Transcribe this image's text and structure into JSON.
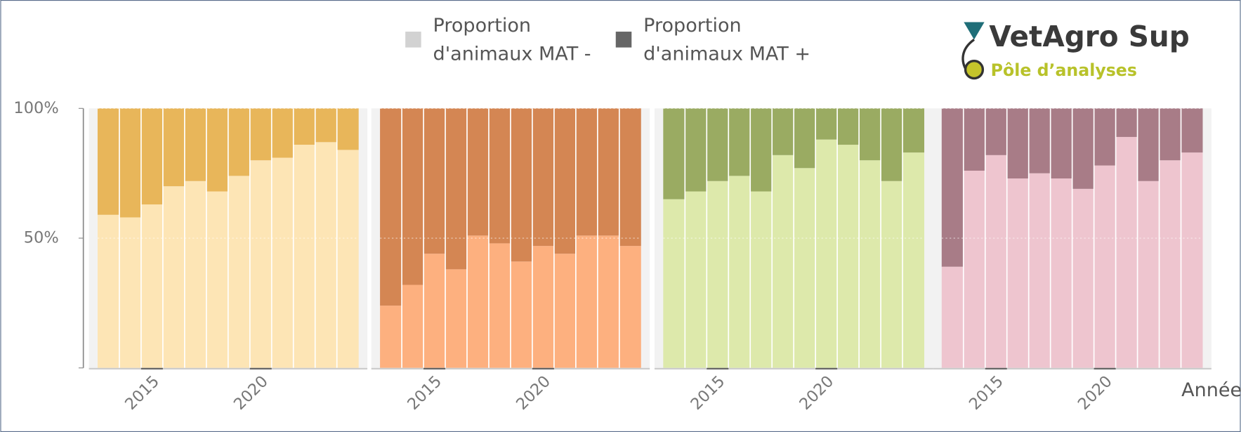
{
  "logo": {
    "name": "VetAgro Sup",
    "subtitle": "Pôle d’analyses"
  },
  "legend_colors": [
    "#d2d2d2",
    "#666666"
  ],
  "chart_data": [
    {
      "type": "bar",
      "stacked": true,
      "x": [
        2013,
        2014,
        2015,
        2016,
        2017,
        2018,
        2019,
        2020,
        2021,
        2022,
        2023,
        2024
      ],
      "xticks": [
        2015,
        2020
      ],
      "ylim": [
        0,
        100
      ],
      "yticks": [
        {
          "value": 50,
          "label": "50%"
        },
        {
          "value": 100,
          "label": "100%"
        }
      ],
      "grid": true,
      "series": [
        {
          "name": "Proportion d'animaux MAT -",
          "color": "#fde5b5",
          "values": [
            59,
            58,
            63,
            70,
            72,
            68,
            74,
            80,
            81,
            86,
            87,
            84
          ]
        },
        {
          "name": "Proportion d'animaux MAT +",
          "color": "#e8b65a",
          "values": [
            41,
            42,
            37,
            30,
            28,
            32,
            26,
            20,
            19,
            14,
            13,
            16
          ]
        }
      ]
    },
    {
      "type": "bar",
      "stacked": true,
      "x": [
        2013,
        2014,
        2015,
        2016,
        2017,
        2018,
        2019,
        2020,
        2021,
        2022,
        2023,
        2024
      ],
      "xticks": [
        2015,
        2020
      ],
      "ylim": [
        0,
        100
      ],
      "yticks": [
        {
          "value": 50,
          "label": "50%"
        },
        {
          "value": 100,
          "label": "100%"
        }
      ],
      "grid": true,
      "series": [
        {
          "name": "Proportion d'animaux MAT -",
          "color": "#fdb07f",
          "values": [
            24,
            32,
            44,
            38,
            51,
            48,
            41,
            47,
            44,
            51,
            51,
            47
          ]
        },
        {
          "name": "Proportion d'animaux MAT +",
          "color": "#d48653",
          "values": [
            76,
            68,
            56,
            62,
            49,
            52,
            59,
            53,
            56,
            49,
            49,
            53
          ]
        }
      ]
    },
    {
      "type": "bar",
      "stacked": true,
      "x": [
        2013,
        2014,
        2015,
        2016,
        2017,
        2018,
        2019,
        2020,
        2021,
        2022,
        2023,
        2024
      ],
      "xticks": [
        2015,
        2020
      ],
      "ylim": [
        0,
        100
      ],
      "yticks": [
        {
          "value": 50,
          "label": "50%"
        },
        {
          "value": 100,
          "label": "100%"
        }
      ],
      "grid": true,
      "series": [
        {
          "name": "Proportion d'animaux MAT -",
          "color": "#dde9ab",
          "values": [
            65,
            68,
            72,
            74,
            68,
            82,
            77,
            88,
            86,
            80,
            72,
            83
          ]
        },
        {
          "name": "Proportion d'animaux MAT +",
          "color": "#9aab62",
          "values": [
            35,
            32,
            28,
            26,
            32,
            18,
            23,
            12,
            14,
            20,
            28,
            17
          ]
        }
      ]
    },
    {
      "type": "bar",
      "stacked": true,
      "x": [
        2013,
        2014,
        2015,
        2016,
        2017,
        2018,
        2019,
        2020,
        2021,
        2022,
        2023,
        2024
      ],
      "xticks": [
        2015,
        2020
      ],
      "ylim": [
        0,
        100
      ],
      "x_label": "Année",
      "yticks": [
        {
          "value": 50,
          "label": "50%"
        },
        {
          "value": 100,
          "label": "100%"
        }
      ],
      "grid": true,
      "series": [
        {
          "name": "Proportion d'animaux MAT -",
          "color": "#eec5cf",
          "values": [
            39,
            76,
            82,
            73,
            75,
            73,
            69,
            78,
            89,
            72,
            80,
            83
          ]
        },
        {
          "name": "Proportion d'animaux MAT +",
          "color": "#a87c87",
          "values": [
            61,
            24,
            18,
            27,
            25,
            27,
            31,
            22,
            11,
            28,
            20,
            17
          ]
        }
      ]
    }
  ]
}
